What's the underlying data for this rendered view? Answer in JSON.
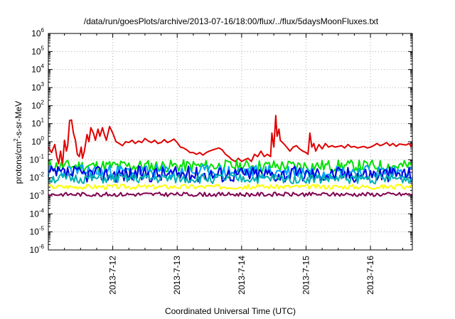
{
  "chart_data": {
    "type": "line",
    "title": "/data/run/goesPlots/archive/2013-07-16/18:00/flux/../flux/5daysMoonFluxes.txt",
    "xlabel": "Coordinated Universal Time (UTC)",
    "ylabel": "protons/cm²-s-sr-MeV",
    "yscale": "log",
    "ylim": [
      1e-06,
      1000000.0
    ],
    "y_ticks": [
      {
        "exp": "-6"
      },
      {
        "exp": "-5"
      },
      {
        "exp": "-4"
      },
      {
        "exp": "-3"
      },
      {
        "exp": "-2"
      },
      {
        "exp": "-1"
      },
      {
        "exp": "0"
      },
      {
        "exp": "1"
      },
      {
        "exp": "2"
      },
      {
        "exp": "3"
      },
      {
        "exp": "4"
      },
      {
        "exp": "5"
      },
      {
        "exp": "6"
      }
    ],
    "xlim": [
      "2013-07-11 03:00",
      "2013-07-16 18:00"
    ],
    "x_ticks": [
      {
        "label": "2013-7-12",
        "day": 1.0
      },
      {
        "label": "2013-7-13",
        "day": 2.0
      },
      {
        "label": "2013-7-14",
        "day": 3.0
      },
      {
        "label": "2013-7-15",
        "day": 4.0
      },
      {
        "label": "2013-7-16",
        "day": 5.0
      }
    ],
    "grid": true,
    "series": [
      {
        "color": "#e00000",
        "points": [
          [
            0.0,
            0.5
          ],
          [
            0.05,
            0.25
          ],
          [
            0.1,
            0.7
          ],
          [
            0.13,
            0.15
          ],
          [
            0.16,
            0.06
          ],
          [
            0.19,
            0.3
          ],
          [
            0.22,
            0.05
          ],
          [
            0.25,
            1.2
          ],
          [
            0.28,
            0.3
          ],
          [
            0.3,
            0.6
          ],
          [
            0.33,
            15
          ],
          [
            0.36,
            16
          ],
          [
            0.39,
            3
          ],
          [
            0.42,
            1.2
          ],
          [
            0.45,
            0.2
          ],
          [
            0.48,
            0.15
          ],
          [
            0.51,
            0.5
          ],
          [
            0.53,
            0.12
          ],
          [
            0.56,
            0.3
          ],
          [
            0.6,
            2.5
          ],
          [
            0.63,
            1
          ],
          [
            0.66,
            6
          ],
          [
            0.7,
            3
          ],
          [
            0.73,
            1.2
          ],
          [
            0.77,
            5
          ],
          [
            0.8,
            2
          ],
          [
            0.84,
            6
          ],
          [
            0.87,
            2.5
          ],
          [
            0.9,
            1.2
          ],
          [
            0.95,
            7
          ],
          [
            1.0,
            3
          ],
          [
            1.05,
            1
          ],
          [
            1.1,
            0.8
          ],
          [
            1.15,
            0.6
          ],
          [
            1.2,
            1
          ],
          [
            1.25,
            0.9
          ],
          [
            1.3,
            1.2
          ],
          [
            1.35,
            0.8
          ],
          [
            1.4,
            1.1
          ],
          [
            1.45,
            0.9
          ],
          [
            1.5,
            1.5
          ],
          [
            1.55,
            1.1
          ],
          [
            1.6,
            0.9
          ],
          [
            1.65,
            1.2
          ],
          [
            1.7,
            0.8
          ],
          [
            1.75,
            0.9
          ],
          [
            1.8,
            1.3
          ],
          [
            1.85,
            0.9
          ],
          [
            1.9,
            1.1
          ],
          [
            1.95,
            1.4
          ],
          [
            2.0,
            0.9
          ],
          [
            2.05,
            0.5
          ],
          [
            2.1,
            0.45
          ],
          [
            2.15,
            0.35
          ],
          [
            2.2,
            0.25
          ],
          [
            2.25,
            0.25
          ],
          [
            2.3,
            0.2
          ],
          [
            2.35,
            0.25
          ],
          [
            2.4,
            0.18
          ],
          [
            2.45,
            0.25
          ],
          [
            2.5,
            0.3
          ],
          [
            2.55,
            0.35
          ],
          [
            2.6,
            0.4
          ],
          [
            2.65,
            0.45
          ],
          [
            2.7,
            0.35
          ],
          [
            2.75,
            0.2
          ],
          [
            2.8,
            0.15
          ],
          [
            2.85,
            0.1
          ],
          [
            2.9,
            0.08
          ],
          [
            2.95,
            0.12
          ],
          [
            3.0,
            0.08
          ],
          [
            3.05,
            0.1
          ],
          [
            3.1,
            0.12
          ],
          [
            3.15,
            0.08
          ],
          [
            3.2,
            0.2
          ],
          [
            3.25,
            0.15
          ],
          [
            3.3,
            0.3
          ],
          [
            3.35,
            0.15
          ],
          [
            3.4,
            0.2
          ],
          [
            3.45,
            0.15
          ],
          [
            3.47,
            3
          ],
          [
            3.5,
            0.5
          ],
          [
            3.53,
            28
          ],
          [
            3.55,
            2
          ],
          [
            3.58,
            5
          ],
          [
            3.6,
            1.2
          ],
          [
            3.65,
            0.8
          ],
          [
            3.7,
            0.5
          ],
          [
            3.75,
            0.3
          ],
          [
            3.8,
            0.5
          ],
          [
            3.85,
            0.6
          ],
          [
            3.9,
            0.4
          ],
          [
            3.95,
            0.3
          ],
          [
            4.0,
            0.25
          ],
          [
            4.03,
            0.2
          ],
          [
            4.06,
            3
          ],
          [
            4.09,
            0.5
          ],
          [
            4.12,
            0.8
          ],
          [
            4.15,
            0.3
          ],
          [
            4.2,
            0.7
          ],
          [
            4.25,
            0.4
          ],
          [
            4.3,
            0.8
          ],
          [
            4.35,
            0.5
          ],
          [
            4.4,
            0.6
          ],
          [
            4.45,
            0.5
          ],
          [
            4.5,
            0.55
          ],
          [
            4.55,
            0.6
          ],
          [
            4.6,
            0.45
          ],
          [
            4.65,
            0.7
          ],
          [
            4.7,
            0.5
          ],
          [
            4.75,
            0.55
          ],
          [
            4.8,
            0.45
          ],
          [
            4.85,
            0.5
          ],
          [
            4.9,
            0.55
          ],
          [
            4.95,
            0.45
          ],
          [
            5.0,
            0.5
          ],
          [
            5.05,
            0.6
          ],
          [
            5.1,
            0.8
          ],
          [
            5.15,
            0.6
          ],
          [
            5.2,
            0.7
          ],
          [
            5.25,
            0.9
          ],
          [
            5.3,
            0.6
          ],
          [
            5.35,
            0.8
          ],
          [
            5.4,
            0.55
          ],
          [
            5.45,
            0.75
          ],
          [
            5.5,
            0.7
          ],
          [
            5.55,
            0.65
          ],
          [
            5.6,
            0.8
          ],
          [
            5.63,
            0.55
          ],
          [
            5.65,
            0.75
          ]
        ]
      },
      {
        "color": "#00e000",
        "base": 0.045,
        "amp": 2.2,
        "seed": 11
      },
      {
        "color": "#00a0ff",
        "base": 0.022,
        "amp": 2.4,
        "seed": 23
      },
      {
        "color": "#0000e0",
        "base": 0.016,
        "amp": 2.8,
        "seed": 37
      },
      {
        "color": "#00b0b0",
        "base": 0.009,
        "amp": 1.9,
        "seed": 51
      },
      {
        "color": "#ffff00",
        "base": 0.0032,
        "amp": 1.35,
        "seed": 67
      },
      {
        "color": "#800050",
        "base": 0.0012,
        "amp": 1.3,
        "seed": 83
      }
    ]
  }
}
